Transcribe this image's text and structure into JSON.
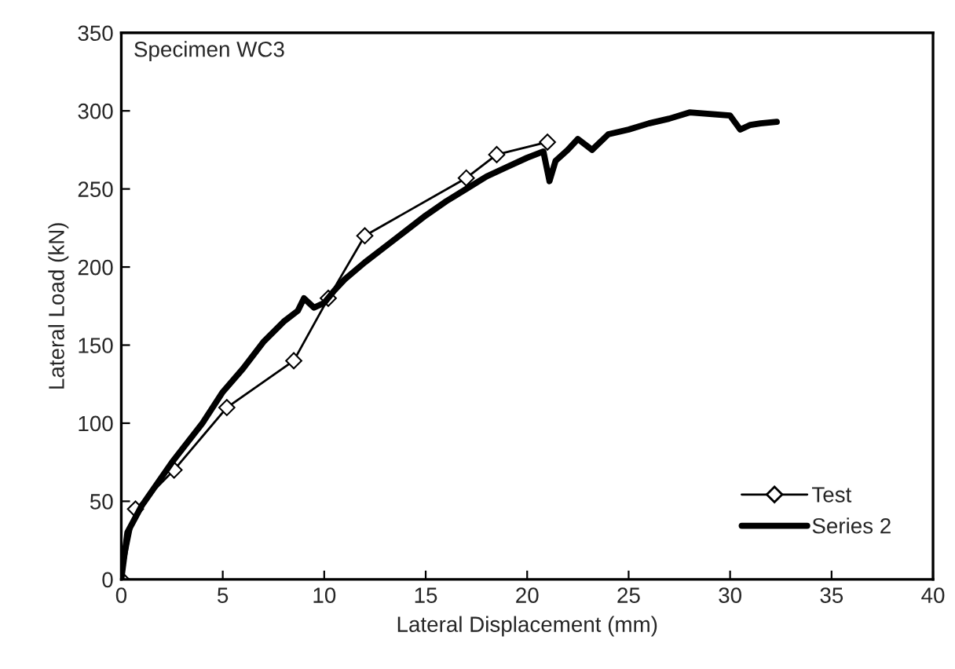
{
  "chart_data": {
    "type": "line",
    "xlabel": "Lateral Displacement (mm)",
    "ylabel": "Lateral Load (kN)",
    "annotations": [
      "Specimen WC3"
    ],
    "xlim": [
      0,
      40
    ],
    "xticks": [
      0,
      5,
      10,
      15,
      20,
      25,
      30,
      35,
      40
    ],
    "ylim": [
      0,
      350
    ],
    "yticks": [
      0,
      50,
      100,
      150,
      200,
      250,
      300,
      350
    ],
    "grid": false,
    "legend": "bottom right",
    "series": [
      {
        "name": "Test",
        "color": "#000000",
        "marker": "diamond",
        "x": [
          0,
          0.7,
          2.6,
          5.2,
          8.5,
          10.2,
          12,
          17,
          18.5,
          21
        ],
        "values": [
          0,
          45,
          70,
          110,
          140,
          180,
          220,
          257,
          272,
          280
        ]
      },
      {
        "name": "Series 2",
        "color": "#000000",
        "marker": "none",
        "x": [
          0,
          0.3,
          1,
          2.5,
          4,
          5,
          6,
          7,
          8,
          8.7,
          9,
          9.5,
          10,
          10.5,
          11,
          12,
          13,
          14,
          15,
          16,
          17,
          18,
          19,
          20,
          20.8,
          21.1,
          21.4,
          22,
          22.5,
          23.2,
          24,
          25,
          26,
          27,
          28,
          29,
          30,
          30.5,
          31,
          31.5,
          32.3
        ],
        "values": [
          0,
          30,
          47,
          75,
          100,
          120,
          135,
          152,
          165,
          172,
          180,
          174,
          177,
          185,
          192,
          203,
          213,
          223,
          233,
          242,
          250,
          258,
          264,
          270,
          274,
          255,
          268,
          275,
          282,
          275,
          285,
          288,
          292,
          295,
          299,
          298,
          297,
          288,
          291,
          292,
          293
        ]
      }
    ]
  }
}
